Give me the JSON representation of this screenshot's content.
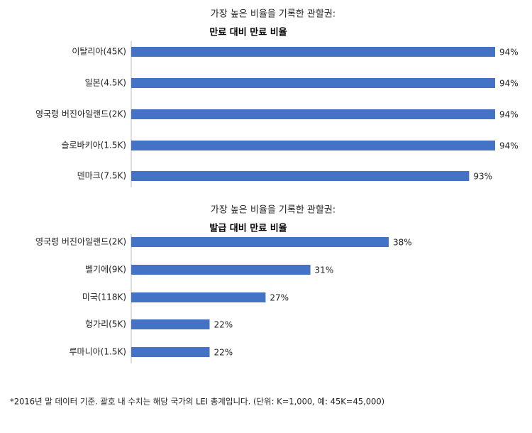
{
  "chart_data": [
    {
      "type": "bar",
      "orientation": "horizontal",
      "title": "가장 높은 비율을 기록한 관할권:",
      "subtitle": "만료 대비 만료 비율",
      "categories": [
        "이탈리아(45K)",
        "일본(4.5K)",
        "영국령 버진아일랜드(2K)",
        "슬로바키아(1.5K)",
        "덴마크(7.5K)"
      ],
      "values": [
        94,
        94,
        94,
        94,
        93
      ],
      "value_labels": [
        "94%",
        "94%",
        "94%",
        "94%",
        "93%"
      ],
      "color": "#4472c4",
      "xlim": [
        80,
        94
      ]
    },
    {
      "type": "bar",
      "orientation": "horizontal",
      "title": "가장 높은 비율을 기록한 관할권:",
      "subtitle": "발급 대비 만료 비율",
      "categories": [
        "영국령 버진아일랜드(2K)",
        "벨기에(9K)",
        "미국(118K)",
        "헝가리(5K)",
        "루마니아(1.5K)"
      ],
      "values": [
        38,
        31,
        27,
        22,
        22
      ],
      "value_labels": [
        "38%",
        "31%",
        "27%",
        "22%",
        "22%"
      ],
      "color": "#4472c4",
      "xlim": [
        15,
        47.5
      ]
    }
  ],
  "footnote": "*2016년 말 데이터 기준. 괄호 내 수치는 해당 국가의 LEI 총계입니다. (단위: K=1,000, 예: 45K=45,000)"
}
